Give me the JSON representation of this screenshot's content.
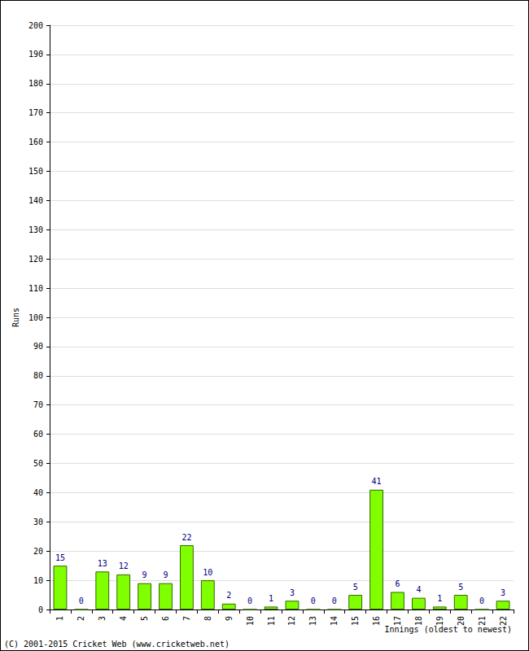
{
  "chart_data": {
    "type": "bar",
    "categories": [
      "1",
      "2",
      "3",
      "4",
      "5",
      "6",
      "7",
      "8",
      "9",
      "10",
      "11",
      "12",
      "13",
      "14",
      "15",
      "16",
      "17",
      "18",
      "19",
      "20",
      "21",
      "22"
    ],
    "values": [
      15,
      0,
      13,
      12,
      9,
      9,
      22,
      10,
      2,
      0,
      1,
      3,
      0,
      0,
      5,
      41,
      6,
      4,
      1,
      5,
      0,
      3
    ],
    "color": "#80ff00",
    "ylim": [
      0,
      200
    ],
    "yticks": [
      0,
      10,
      20,
      30,
      40,
      50,
      60,
      70,
      80,
      90,
      100,
      110,
      120,
      130,
      140,
      150,
      160,
      170,
      180,
      190,
      200
    ],
    "grid": true,
    "data_labels": true,
    "x_label": "Innings (oldest to newest)",
    "y_label": "Runs",
    "annotations": [
      "(C) 2001-2015 Cricket Web (www.cricketweb.net)"
    ]
  }
}
